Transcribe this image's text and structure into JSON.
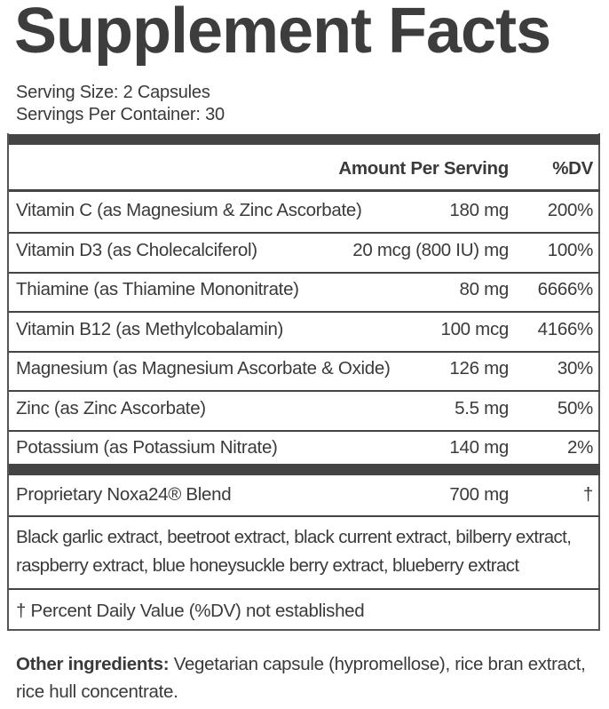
{
  "title": "Supplement Facts",
  "serving_size": "Serving Size: 2 Capsules",
  "servings_per_container": "Servings Per Container: 30",
  "table": {
    "header": [
      "Amount Per Serving",
      "%DV"
    ],
    "rows": [
      [
        "Vitamin C (as Magnesium & Zinc Ascorbate)",
        "180 mg",
        "200%"
      ],
      [
        "Vitamin D3 (as Cholecalciferol)",
        "20 mcg (800 IU) mg",
        "100%"
      ],
      [
        "Thiamine (as Thiamine Mononitrate)",
        "80 mg",
        "6666%"
      ],
      [
        "Vitamin B12 (as Methylcobalamin)",
        "100 mcg",
        "4166%"
      ],
      [
        "Magnesium (as Magnesium Ascorbate & Oxide)",
        "126 mg",
        "30%"
      ],
      [
        "Zinc (as Zinc Ascorbate)",
        "5.5 mg",
        "50%"
      ],
      [
        "Potassium (as Potassium Nitrate)",
        "140 mg",
        "2%"
      ]
    ]
  },
  "blend": {
    "name": "Proprietary Noxa24® Blend",
    "amount": "700 mg",
    "dv": "†"
  },
  "blend_ingredients": [
    "Black garlic extract, beetroot extract, black current extract, bilberry extract,",
    "raspberry extract, blue honeysuckle berry extract, blueberry extract"
  ],
  "footnote": "† Percent Daily Value (%DV) not established",
  "other_ingredients": {
    "label": "Other ingredients:",
    "text": "Vegetarian capsule (hypromellose), rice bran extract, rice hull concentrate."
  }
}
